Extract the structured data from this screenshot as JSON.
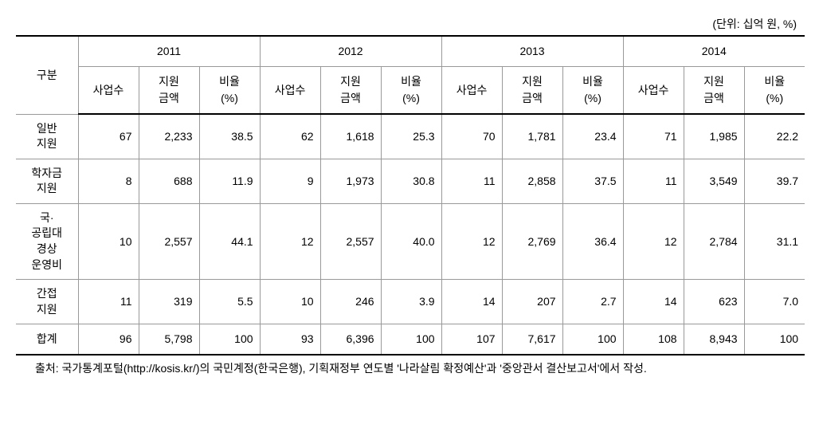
{
  "unit_label": "(단위: 십억 원, %)",
  "header": {
    "category": "구분",
    "years": [
      "2011",
      "2012",
      "2013",
      "2014"
    ],
    "subcols": {
      "count": "사업수",
      "amount": "지원\n금액",
      "ratio": "비율\n(%)"
    }
  },
  "rows": [
    {
      "label": "일반\n지원",
      "y2011": {
        "count": "67",
        "amount": "2,233",
        "ratio": "38.5"
      },
      "y2012": {
        "count": "62",
        "amount": "1,618",
        "ratio": "25.3"
      },
      "y2013": {
        "count": "70",
        "amount": "1,781",
        "ratio": "23.4"
      },
      "y2014": {
        "count": "71",
        "amount": "1,985",
        "ratio": "22.2"
      }
    },
    {
      "label": "학자금\n지원",
      "y2011": {
        "count": "8",
        "amount": "688",
        "ratio": "11.9"
      },
      "y2012": {
        "count": "9",
        "amount": "1,973",
        "ratio": "30.8"
      },
      "y2013": {
        "count": "11",
        "amount": "2,858",
        "ratio": "37.5"
      },
      "y2014": {
        "count": "11",
        "amount": "3,549",
        "ratio": "39.7"
      }
    },
    {
      "label": "국·\n공립대\n경상\n운영비",
      "y2011": {
        "count": "10",
        "amount": "2,557",
        "ratio": "44.1"
      },
      "y2012": {
        "count": "12",
        "amount": "2,557",
        "ratio": "40.0"
      },
      "y2013": {
        "count": "12",
        "amount": "2,769",
        "ratio": "36.4"
      },
      "y2014": {
        "count": "12",
        "amount": "2,784",
        "ratio": "31.1"
      }
    },
    {
      "label": "간접\n지원",
      "y2011": {
        "count": "11",
        "amount": "319",
        "ratio": "5.5"
      },
      "y2012": {
        "count": "10",
        "amount": "246",
        "ratio": "3.9"
      },
      "y2013": {
        "count": "14",
        "amount": "207",
        "ratio": "2.7"
      },
      "y2014": {
        "count": "14",
        "amount": "623",
        "ratio": "7.0"
      }
    },
    {
      "label": "합계",
      "y2011": {
        "count": "96",
        "amount": "5,798",
        "ratio": "100"
      },
      "y2012": {
        "count": "93",
        "amount": "6,396",
        "ratio": "100"
      },
      "y2013": {
        "count": "107",
        "amount": "7,617",
        "ratio": "100"
      },
      "y2014": {
        "count": "108",
        "amount": "8,943",
        "ratio": "100"
      }
    }
  ],
  "footnote": "출처: 국가통계포털(http://kosis.kr/)의 국민계정(한국은행), 기획재정부 연도별 '나라살림 확정예산'과 '중앙관서 결산보고서'에서 작성."
}
